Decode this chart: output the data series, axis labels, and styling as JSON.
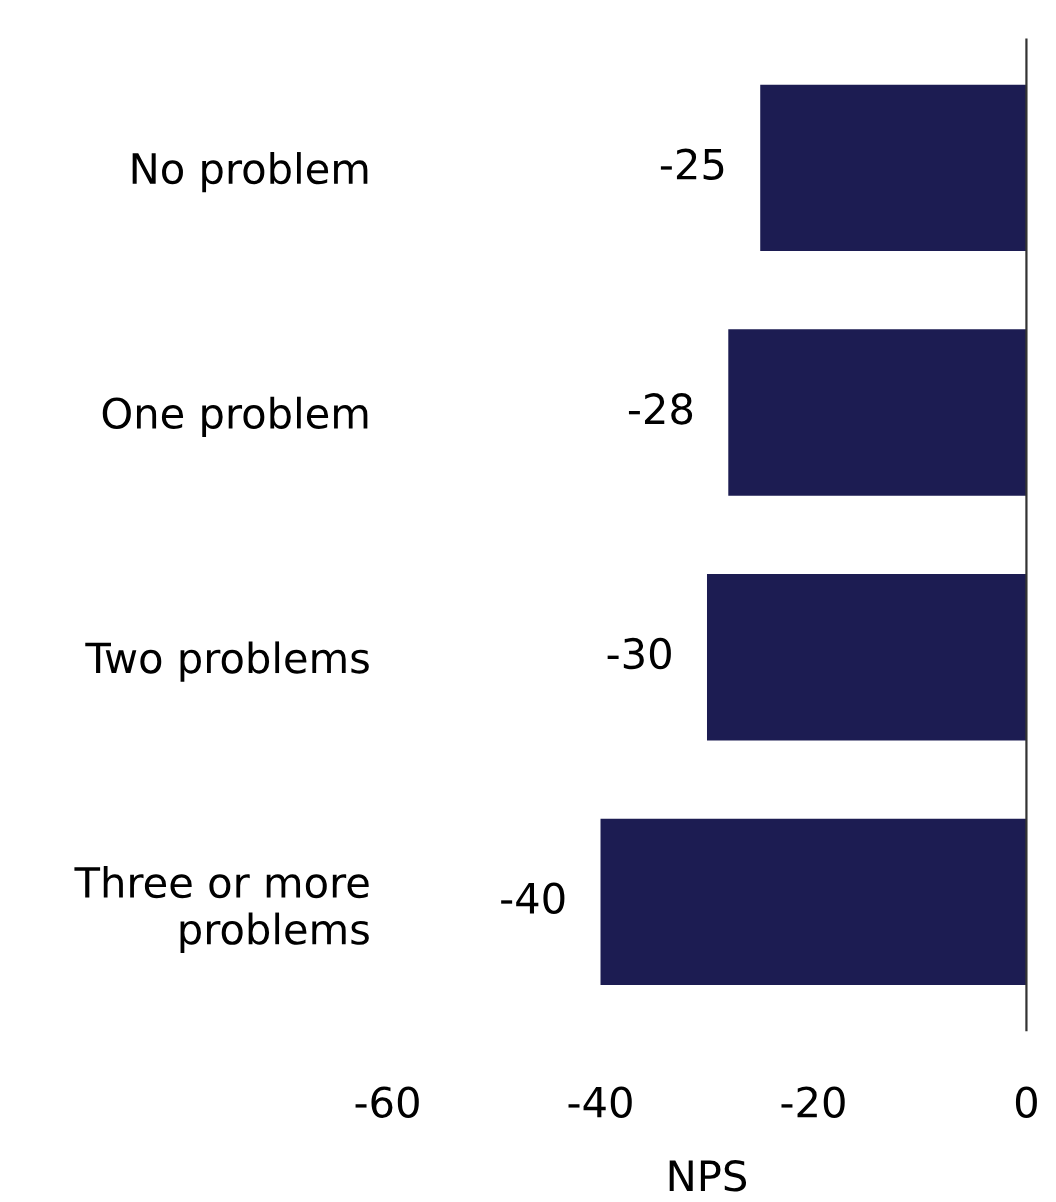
{
  "chart_data": {
    "type": "bar",
    "orientation": "horizontal",
    "xlabel": "NPS",
    "categories": [
      "No problem",
      "One problem",
      "Two problems",
      "Three or more\nproblems"
    ],
    "values": [
      -25,
      -28,
      -30,
      -40
    ],
    "color": "#1c1c52",
    "xlim": [
      -60,
      0
    ],
    "xticks": [
      -60,
      -40,
      -20,
      0
    ],
    "grid": false,
    "data_labels": true
  }
}
